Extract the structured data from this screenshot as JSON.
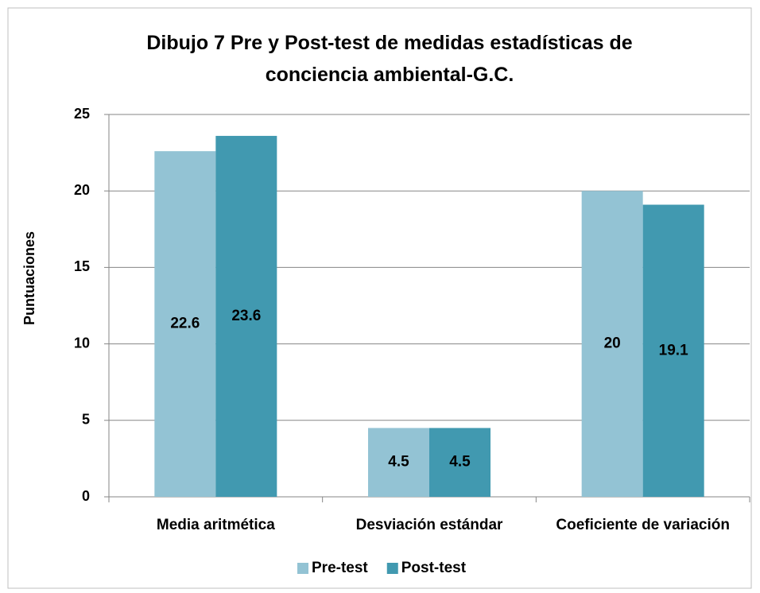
{
  "chart_data": {
    "type": "bar",
    "title": "Dibujo 7 Pre y Post-test de medidas estadísticas de conciencia ambiental-G.C.",
    "y_label": "Puntuaciones",
    "categories": [
      "Media aritmética",
      "Desviación estándar",
      "Coeficiente de variación"
    ],
    "series": [
      {
        "name": "Pre-test",
        "color": "#93c3d4",
        "values": [
          22.6,
          4.5,
          20
        ]
      },
      {
        "name": "Post-test",
        "color": "#4199b0",
        "values": [
          23.6,
          4.5,
          19.1
        ]
      }
    ],
    "ylim": [
      0,
      25
    ],
    "yticks": [
      0,
      5,
      10,
      15,
      20,
      25
    ],
    "grid": true,
    "legend": "bottom"
  }
}
